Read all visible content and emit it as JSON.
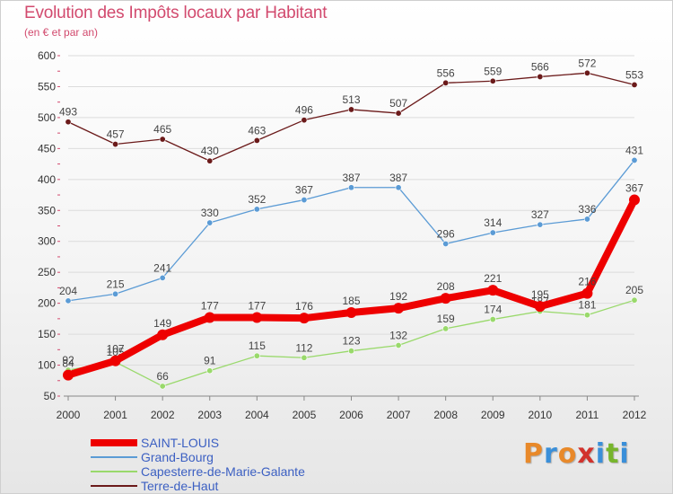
{
  "title": "Evolution des Impôts locaux par Habitant",
  "subtitle": "(en € et par an)",
  "logo": {
    "text": "Proxiti",
    "letter_colors": [
      "#e8892a",
      "#3a8fd9",
      "#e8892a",
      "#d2322d",
      "#3a8fd9",
      "#77b52c",
      "#3a8fd9"
    ]
  },
  "chart_data": {
    "type": "line",
    "x": [
      2000,
      2001,
      2002,
      2003,
      2004,
      2005,
      2006,
      2007,
      2008,
      2009,
      2010,
      2011,
      2012
    ],
    "ylim": [
      50,
      600
    ],
    "yticks": [
      50,
      100,
      150,
      200,
      250,
      300,
      350,
      400,
      450,
      500,
      550,
      600
    ],
    "grid": true,
    "legend_position": "bottom-left",
    "series": [
      {
        "name": "Terre-de-Haut",
        "color": "#6b1a1a",
        "values": [
          493,
          457,
          465,
          430,
          463,
          496,
          513,
          507,
          556,
          559,
          566,
          572,
          553
        ],
        "labels": [
          "493",
          "457",
          "465",
          "430",
          "463",
          "496",
          "513",
          "507",
          "556",
          "559",
          "566",
          "572",
          "553"
        ]
      },
      {
        "name": "Grand-Bourg",
        "color": "#5b9bd5",
        "values": [
          204,
          215,
          241,
          330,
          352,
          367,
          387,
          387,
          296,
          314,
          327,
          336,
          431
        ],
        "labels": [
          "204",
          "215",
          "241",
          "330",
          "352",
          "367",
          "387",
          "387",
          "296",
          "314",
          "327",
          "336",
          "431"
        ]
      },
      {
        "name": "Capesterre-de-Marie-Galante",
        "color": "#99d96b",
        "values": [
          92,
          105,
          66,
          91,
          115,
          112,
          123,
          132,
          159,
          174,
          187,
          181,
          205
        ],
        "labels": [
          "92",
          "105",
          "66",
          "91",
          "115",
          "112",
          "123",
          "132",
          "159",
          "174",
          "187",
          "181",
          "205"
        ]
      },
      {
        "name": "SAINT-LOUIS",
        "color": "#ee0000",
        "values": [
          84,
          107,
          149,
          177,
          177,
          176,
          185,
          192,
          208,
          221,
          195,
          216,
          367
        ],
        "labels": [
          "84",
          "107",
          "149",
          "177",
          "177",
          "176",
          "185",
          "192",
          "208",
          "221",
          "195",
          "216",
          "367"
        ]
      }
    ],
    "legend": [
      {
        "name": "SAINT-LOUIS",
        "color": "#ee0000",
        "text_color": "#3b5fc2"
      },
      {
        "name": "Grand-Bourg",
        "color": "#5b9bd5",
        "text_color": "#3b5fc2"
      },
      {
        "name": "Capesterre-de-Marie-Galante",
        "color": "#99d96b",
        "text_color": "#3b5fc2"
      },
      {
        "name": "Terre-de-Haut",
        "color": "#6b1a1a",
        "text_color": "#3b5fc2"
      }
    ]
  }
}
